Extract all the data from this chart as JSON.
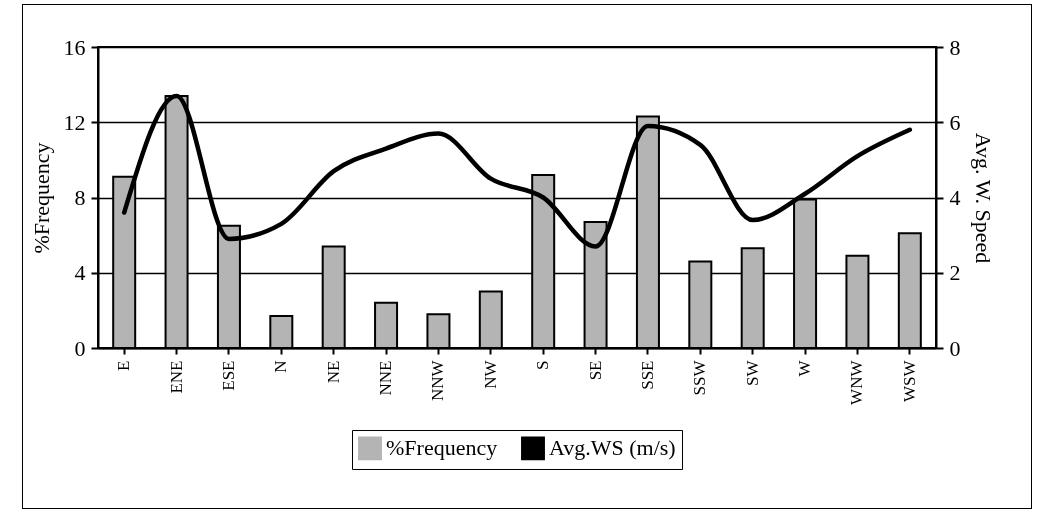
{
  "chart_data": {
    "type": "bar",
    "ylabel": "%Frequency",
    "y2label": "Avg. W. Speed",
    "categories": [
      "E",
      "ENE",
      "ESE",
      "N",
      "NE",
      "NNE",
      "NNW",
      "NW",
      "S",
      "SE",
      "SSE",
      "SSW",
      "SW",
      "W",
      "WNW",
      "WSW"
    ],
    "series": [
      {
        "name": "%Frequency",
        "color": "#b4b4b4",
        "values": [
          9.1,
          13.4,
          6.5,
          1.7,
          5.4,
          2.4,
          1.8,
          3.0,
          9.2,
          6.7,
          12.3,
          4.6,
          5.3,
          7.9,
          4.9,
          6.1
        ]
      },
      {
        "name": "Avg.WS (m/s)",
        "type": "line",
        "axis": "y2",
        "color": "#000000",
        "values": [
          3.6,
          6.7,
          2.9,
          3.3,
          4.7,
          5.3,
          5.7,
          4.5,
          4.0,
          2.7,
          5.9,
          5.4,
          3.4,
          4.1,
          5.1,
          5.8
        ]
      }
    ],
    "ylim": [
      0,
      16
    ],
    "yticks": [
      0,
      4,
      8,
      12,
      16
    ],
    "y2lim": [
      0,
      8
    ],
    "y2ticks": [
      0,
      2,
      4,
      6,
      8
    ],
    "grid": "y",
    "legend": "bottom",
    "marker": "none"
  }
}
